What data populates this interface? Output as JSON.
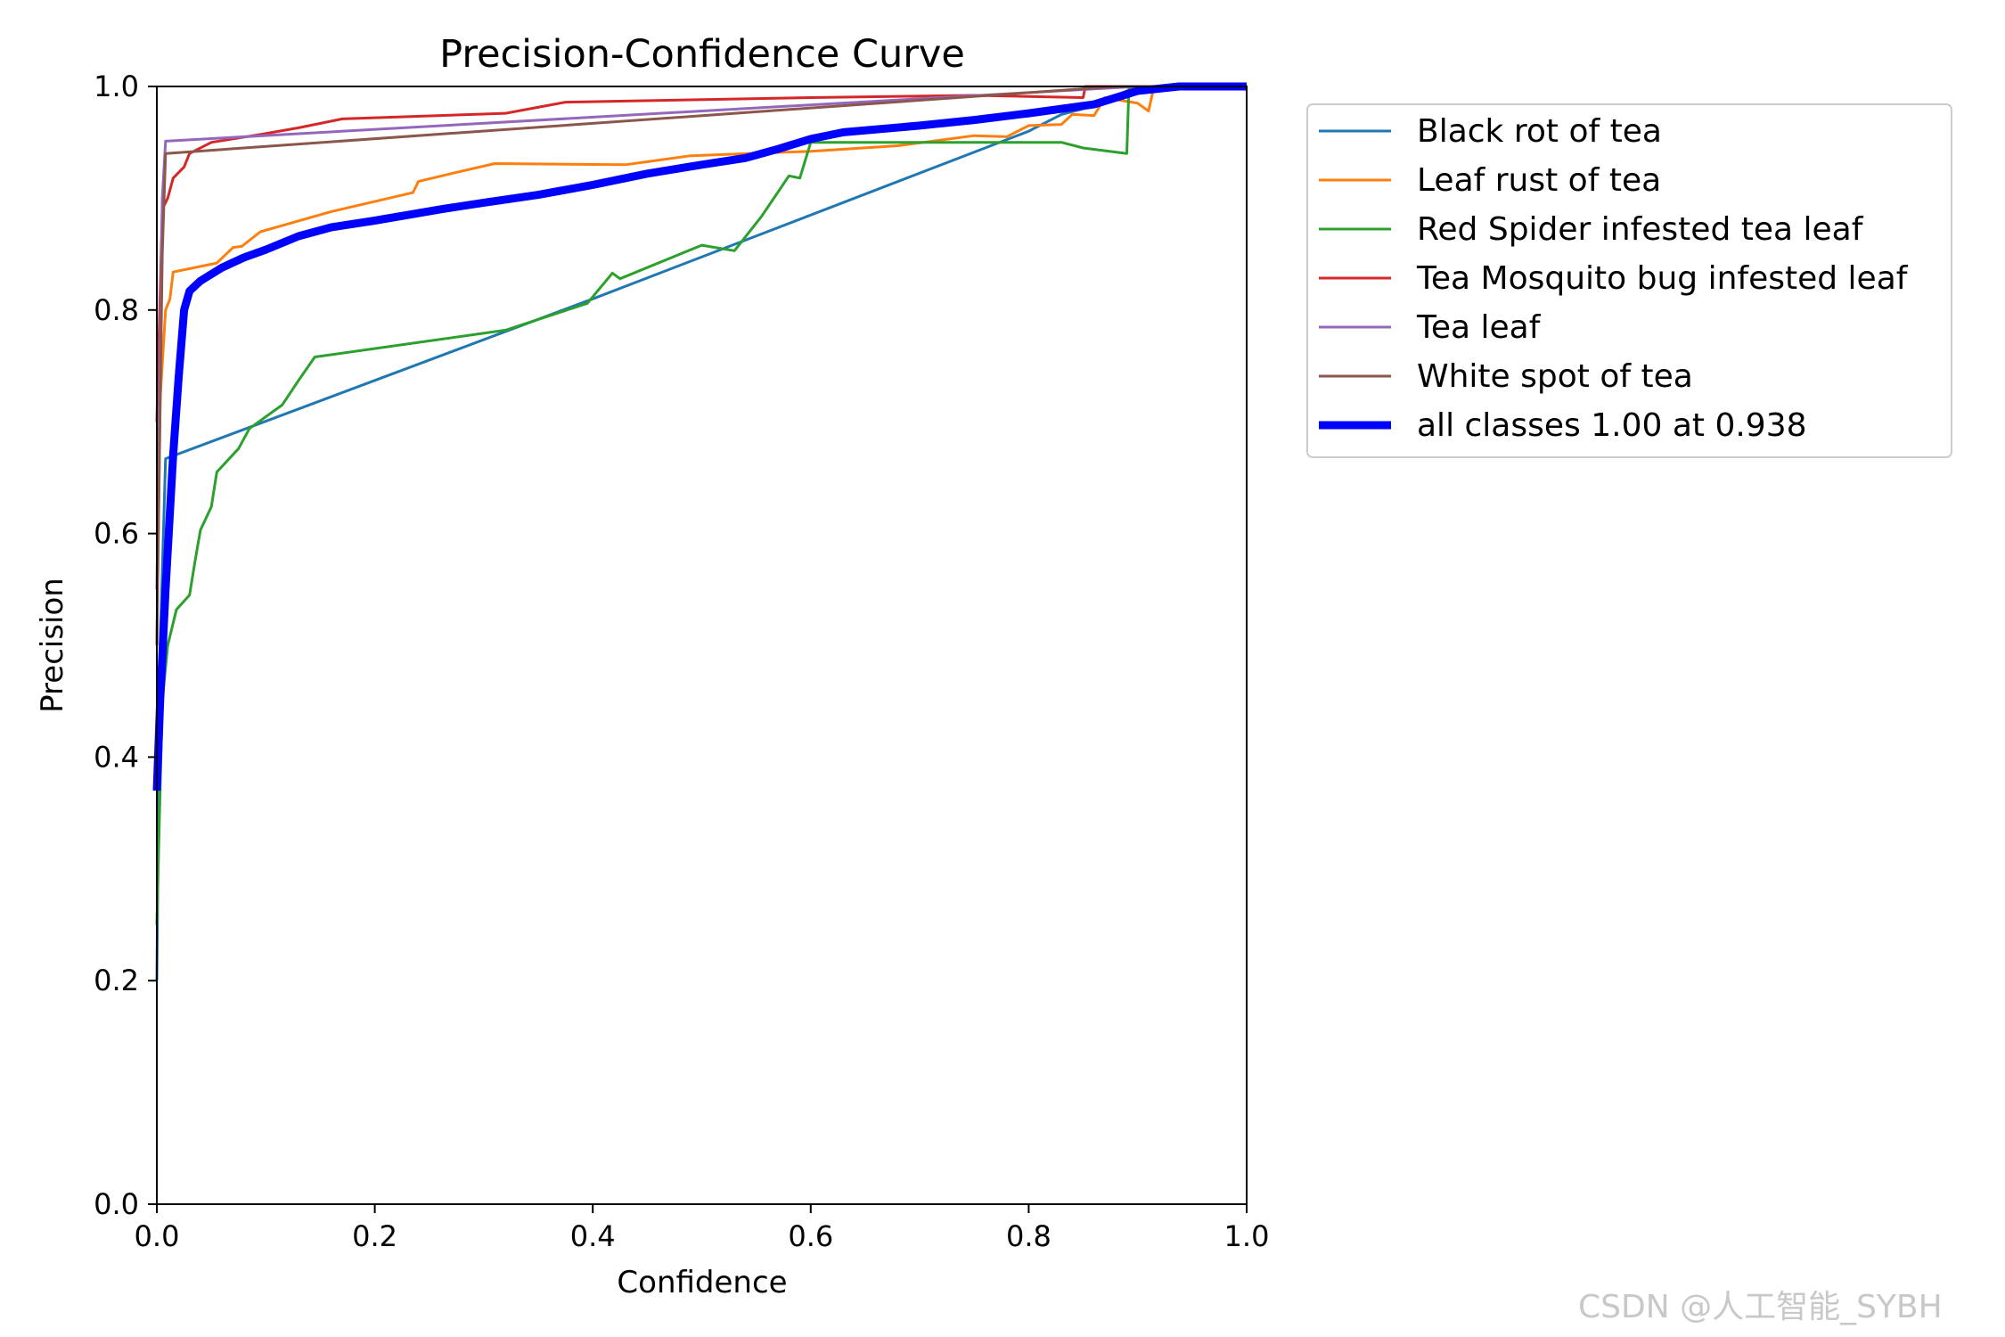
{
  "chart_data": {
    "type": "line",
    "title": "Precision-Confidence Curve",
    "xlabel": "Confidence",
    "ylabel": "Precision",
    "xlim": [
      0,
      1
    ],
    "ylim": [
      0,
      1
    ],
    "xticks": [
      "0.0",
      "0.2",
      "0.4",
      "0.6",
      "0.8",
      "1.0"
    ],
    "yticks": [
      "0.0",
      "0.2",
      "0.4",
      "0.6",
      "0.8",
      "1.0"
    ],
    "grid": false,
    "legend_position": "outside-upper-right",
    "series": [
      {
        "name": "Black rot of tea",
        "color": "#1f77b4",
        "line_width": "thin",
        "points": [
          [
            0,
            0.2
          ],
          [
            0.003,
            0.5
          ],
          [
            0.008,
            0.667
          ],
          [
            0.4,
            0.81
          ],
          [
            0.8,
            0.96
          ],
          [
            0.83,
            0.975
          ],
          [
            0.85,
            0.98
          ],
          [
            0.9,
            1.0
          ],
          [
            1.0,
            1.0
          ]
        ]
      },
      {
        "name": "Leaf rust of tea",
        "color": "#ff7f0e",
        "line_width": "thin",
        "points": [
          [
            0,
            0.5
          ],
          [
            0.003,
            0.72
          ],
          [
            0.008,
            0.8
          ],
          [
            0.012,
            0.81
          ],
          [
            0.015,
            0.834
          ],
          [
            0.055,
            0.842
          ],
          [
            0.07,
            0.856
          ],
          [
            0.078,
            0.857
          ],
          [
            0.095,
            0.87
          ],
          [
            0.16,
            0.888
          ],
          [
            0.235,
            0.905
          ],
          [
            0.24,
            0.915
          ],
          [
            0.27,
            0.922
          ],
          [
            0.31,
            0.931
          ],
          [
            0.43,
            0.93
          ],
          [
            0.49,
            0.938
          ],
          [
            0.6,
            0.942
          ],
          [
            0.68,
            0.947
          ],
          [
            0.75,
            0.956
          ],
          [
            0.78,
            0.955
          ],
          [
            0.8,
            0.965
          ],
          [
            0.83,
            0.966
          ],
          [
            0.84,
            0.975
          ],
          [
            0.86,
            0.974
          ],
          [
            0.87,
            0.99
          ],
          [
            0.9,
            0.985
          ],
          [
            0.91,
            0.978
          ],
          [
            0.915,
            1.0
          ],
          [
            1.0,
            1.0
          ]
        ]
      },
      {
        "name": "Red Spider infested tea leaf",
        "color": "#2ca02c",
        "line_width": "thin",
        "points": [
          [
            0,
            0.25
          ],
          [
            0.005,
            0.45
          ],
          [
            0.01,
            0.5
          ],
          [
            0.018,
            0.532
          ],
          [
            0.03,
            0.545
          ],
          [
            0.035,
            0.575
          ],
          [
            0.04,
            0.603
          ],
          [
            0.05,
            0.624
          ],
          [
            0.055,
            0.655
          ],
          [
            0.075,
            0.676
          ],
          [
            0.085,
            0.694
          ],
          [
            0.115,
            0.715
          ],
          [
            0.13,
            0.737
          ],
          [
            0.145,
            0.758
          ],
          [
            0.32,
            0.782
          ],
          [
            0.395,
            0.806
          ],
          [
            0.418,
            0.833
          ],
          [
            0.425,
            0.828
          ],
          [
            0.5,
            0.858
          ],
          [
            0.53,
            0.853
          ],
          [
            0.555,
            0.884
          ],
          [
            0.58,
            0.92
          ],
          [
            0.59,
            0.918
          ],
          [
            0.6,
            0.95
          ],
          [
            0.83,
            0.95
          ],
          [
            0.85,
            0.945
          ],
          [
            0.89,
            0.94
          ],
          [
            0.892,
            1.0
          ],
          [
            1.0,
            1.0
          ]
        ]
      },
      {
        "name": "Tea Mosquito bug infested leaf",
        "color": "#d62728",
        "line_width": "thin",
        "points": [
          [
            0,
            0.7
          ],
          [
            0.005,
            0.89
          ],
          [
            0.01,
            0.9
          ],
          [
            0.015,
            0.918
          ],
          [
            0.025,
            0.928
          ],
          [
            0.03,
            0.94
          ],
          [
            0.05,
            0.95
          ],
          [
            0.095,
            0.957
          ],
          [
            0.13,
            0.963
          ],
          [
            0.17,
            0.971
          ],
          [
            0.32,
            0.976
          ],
          [
            0.375,
            0.986
          ],
          [
            0.6,
            0.99
          ],
          [
            0.75,
            0.992
          ],
          [
            0.85,
            0.99
          ],
          [
            0.852,
            1.0
          ],
          [
            1.0,
            1.0
          ]
        ]
      },
      {
        "name": "Tea leaf",
        "color": "#9467bd",
        "line_width": "thin",
        "points": [
          [
            0,
            0.55
          ],
          [
            0.005,
            0.9
          ],
          [
            0.008,
            0.951
          ],
          [
            0.9,
            1.0
          ],
          [
            1.0,
            1.0
          ]
        ]
      },
      {
        "name": "White spot of tea",
        "color": "#8c564b",
        "line_width": "thin",
        "points": [
          [
            0,
            0.5
          ],
          [
            0.005,
            0.85
          ],
          [
            0.008,
            0.94
          ],
          [
            0.88,
            1.0
          ],
          [
            1.0,
            1.0
          ]
        ]
      },
      {
        "name": "all classes 1.00 at 0.938",
        "color": "#0000ff",
        "line_width": "thick",
        "points": [
          [
            0,
            0.37
          ],
          [
            0.003,
            0.45
          ],
          [
            0.008,
            0.55
          ],
          [
            0.015,
            0.67
          ],
          [
            0.02,
            0.74
          ],
          [
            0.025,
            0.8
          ],
          [
            0.03,
            0.817
          ],
          [
            0.04,
            0.826
          ],
          [
            0.06,
            0.838
          ],
          [
            0.08,
            0.847
          ],
          [
            0.1,
            0.854
          ],
          [
            0.13,
            0.866
          ],
          [
            0.16,
            0.874
          ],
          [
            0.2,
            0.88
          ],
          [
            0.26,
            0.89
          ],
          [
            0.3,
            0.896
          ],
          [
            0.35,
            0.903
          ],
          [
            0.4,
            0.912
          ],
          [
            0.45,
            0.922
          ],
          [
            0.5,
            0.93
          ],
          [
            0.54,
            0.936
          ],
          [
            0.57,
            0.944
          ],
          [
            0.6,
            0.953
          ],
          [
            0.63,
            0.959
          ],
          [
            0.7,
            0.965
          ],
          [
            0.75,
            0.97
          ],
          [
            0.8,
            0.976
          ],
          [
            0.86,
            0.984
          ],
          [
            0.9,
            0.996
          ],
          [
            0.938,
            1.0
          ],
          [
            1.0,
            1.0
          ]
        ]
      }
    ]
  },
  "watermark": "CSDN @人工智能_SYBH"
}
